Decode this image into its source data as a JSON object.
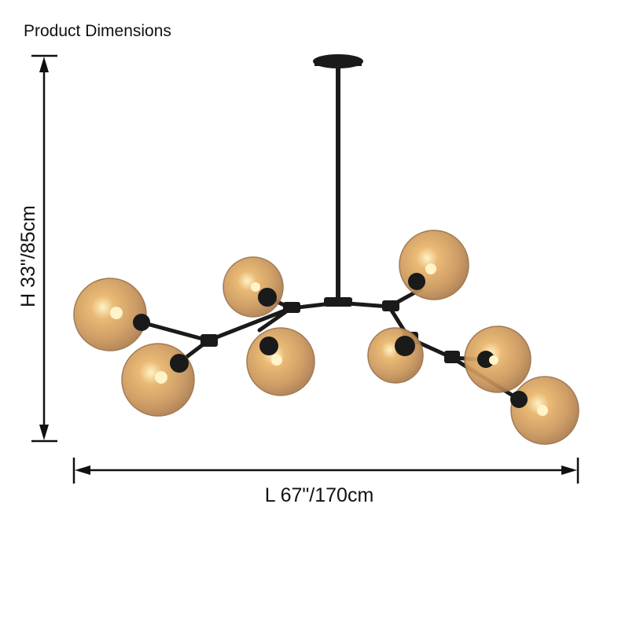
{
  "header": {
    "title": "Product Dimensions"
  },
  "dimensions": {
    "height": "H 33\"/85cm",
    "length": "L 67\"/170cm"
  }
}
